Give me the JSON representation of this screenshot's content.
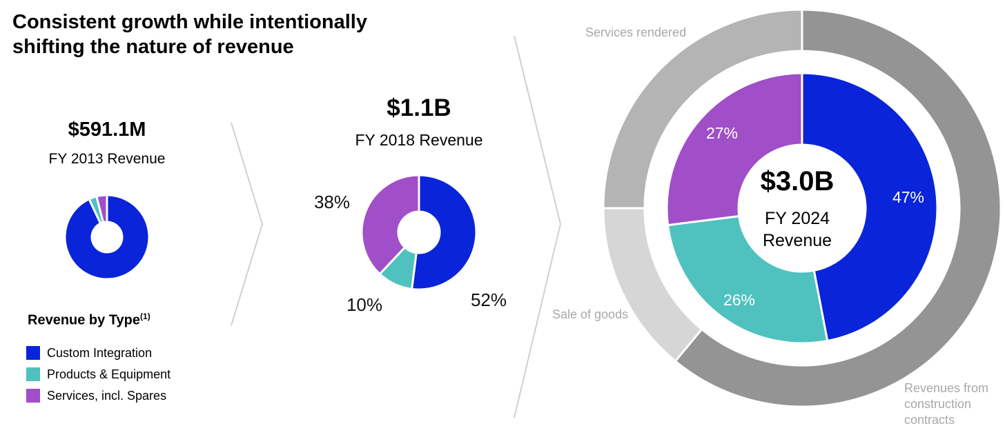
{
  "title_lines": [
    "Consistent growth while intentionally",
    "shifting the nature of revenue"
  ],
  "colors": {
    "custom": "#0a24d9",
    "products": "#4fc2c0",
    "services": "#a04fc8",
    "outer_services": "#b4b4b4",
    "outer_goods": "#d6d6d6",
    "outer_construction": "#949494"
  },
  "panels": {
    "fy2013": {
      "amount": "$591.1M",
      "caption": "FY 2013 Revenue"
    },
    "fy2018": {
      "amount": "$1.1B",
      "caption": "FY 2018 Revenue"
    },
    "fy2024": {
      "amount": "$3.0B",
      "caption_line1": "FY 2024",
      "caption_line2": "Revenue"
    }
  },
  "legend": {
    "title": "Revenue by Type",
    "footnote": "(1)",
    "items": [
      {
        "label": "Custom Integration",
        "color_key": "custom"
      },
      {
        "label": "Products & Equipment",
        "color_key": "products"
      },
      {
        "label": "Services, incl. Spares",
        "color_key": "services"
      }
    ]
  },
  "chart_data": [
    {
      "type": "pie",
      "title": "FY 2013 Revenue",
      "categories": [
        "Custom Integration",
        "Products & Equipment",
        "Services, incl. Spares"
      ],
      "values": [
        93,
        3,
        4
      ],
      "labels_shown": false
    },
    {
      "type": "pie",
      "title": "FY 2018 Revenue",
      "categories": [
        "Custom Integration",
        "Products & Equipment",
        "Services, incl. Spares"
      ],
      "values": [
        52,
        10,
        38
      ],
      "value_labels": [
        "52%",
        "10%",
        "38%"
      ]
    },
    {
      "type": "pie",
      "title": "FY 2024 Revenue (inner ring)",
      "categories": [
        "Custom Integration",
        "Products & Equipment",
        "Services, incl. Spares"
      ],
      "values": [
        47,
        26,
        27
      ],
      "value_labels": [
        "47%",
        "26%",
        "27%"
      ]
    },
    {
      "type": "pie",
      "title": "FY 2024 Revenue (outer ring)",
      "categories": [
        "Revenues from construction contracts",
        "Sale of goods",
        "Services rendered"
      ],
      "values": [
        61,
        14,
        25
      ],
      "labels_shown": false
    }
  ],
  "outer_labels": {
    "services": "Services rendered",
    "goods": "Sale of goods",
    "construction": [
      "Revenues from",
      "construction",
      "contracts"
    ]
  }
}
